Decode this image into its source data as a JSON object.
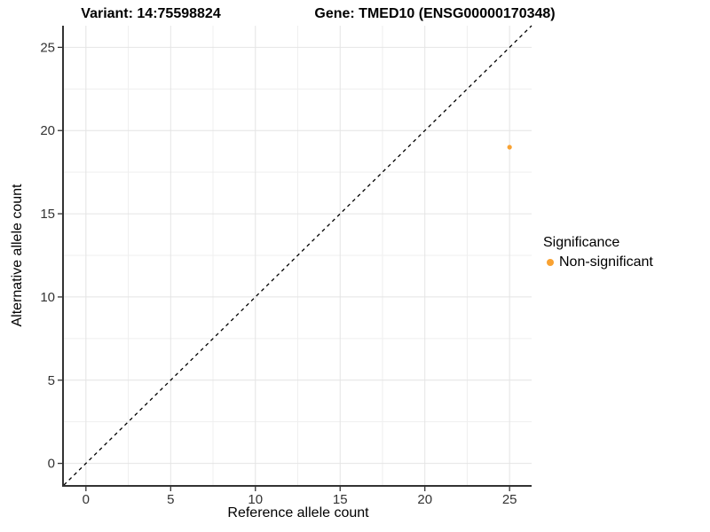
{
  "chart_data": {
    "type": "scatter",
    "title_variant": "Variant: 14:75598824",
    "title_gene": "Gene: TMED10 (ENSG00000170348)",
    "xlabel": "Reference allele count",
    "ylabel": "Alternative allele count",
    "xlim": [
      -1.3,
      26.3
    ],
    "ylim": [
      -1.3,
      26.3
    ],
    "xticks": [
      0,
      5,
      10,
      15,
      20,
      25
    ],
    "yticks": [
      0,
      5,
      10,
      15,
      20,
      25
    ],
    "minor_gridlines_midway": true,
    "grid": true,
    "reference_line": {
      "kind": "identity",
      "style": "dashed",
      "color": "#000000"
    },
    "series": [
      {
        "name": "Non-significant",
        "color": "#F9A232",
        "points": [
          {
            "x": 25,
            "y": 19
          }
        ]
      }
    ],
    "legend": {
      "title": "Significance",
      "position": "right",
      "items": [
        {
          "label": "Non-significant",
          "color": "#F9A232"
        }
      ]
    }
  },
  "style": {
    "background": "#ffffff",
    "major_grid_color": "#e4e4e4",
    "minor_grid_color": "#efefef",
    "axis_line_color": "#333333",
    "tick_color": "#333333",
    "tick_label_color": "#333333",
    "point_radius": 2.6,
    "tick_label_font_size": 15
  }
}
